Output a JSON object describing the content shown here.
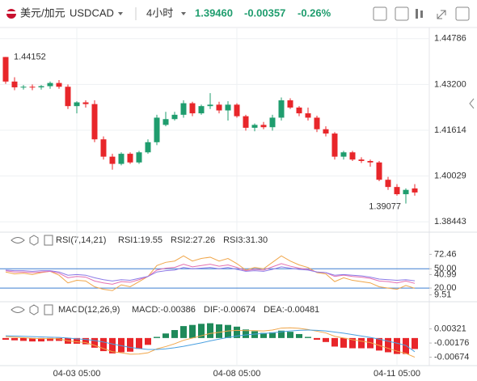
{
  "header": {
    "pair": "美元/加元",
    "symbol": "USDCAD",
    "interval": "4小时",
    "price": "1.39460",
    "change": "-0.00357",
    "change_pct": "-0.26%"
  },
  "chart_data": [
    {
      "type": "candlestick",
      "categories": [
        null,
        null,
        null,
        null,
        null,
        null,
        null,
        null,
        "04-03 05:00",
        null,
        null,
        null,
        null,
        null,
        null,
        null,
        null,
        null,
        null,
        null,
        null,
        null,
        null,
        null,
        null,
        null,
        "04-08 05:00",
        null,
        null,
        null,
        null,
        null,
        null,
        null,
        null,
        null,
        null,
        null,
        null,
        null,
        null,
        null,
        null,
        null,
        "04-11 05:00",
        null,
        null
      ],
      "open": [
        1.4415,
        1.433,
        1.431,
        1.4312,
        1.431,
        1.4314,
        1.4325,
        1.4312,
        1.4245,
        1.4258,
        1.4252,
        1.413,
        1.407,
        1.4045,
        1.408,
        1.405,
        1.4085,
        1.412,
        1.418,
        1.42,
        1.4215,
        1.4255,
        1.422,
        1.4245,
        1.425,
        1.423,
        1.425,
        1.421,
        1.417,
        1.418,
        1.4172,
        1.4205,
        1.4265,
        1.424,
        1.422,
        1.4205,
        1.4165,
        1.415,
        1.407,
        1.4085,
        1.406,
        1.4055,
        1.405,
        1.399,
        1.3965,
        1.394,
        1.396
      ],
      "high": [
        1.44152,
        1.4345,
        1.4318,
        1.432,
        1.4318,
        1.433,
        1.4335,
        1.432,
        1.4262,
        1.4265,
        1.4265,
        1.414,
        1.408,
        1.4085,
        1.4085,
        1.409,
        1.413,
        1.4215,
        1.4225,
        1.4225,
        1.4265,
        1.426,
        1.425,
        1.429,
        1.426,
        1.4262,
        1.4255,
        1.4215,
        1.4185,
        1.419,
        1.4215,
        1.4275,
        1.4272,
        1.4245,
        1.424,
        1.4212,
        1.4175,
        1.4155,
        1.409,
        1.409,
        1.4068,
        1.406,
        1.4055,
        1.4,
        1.3975,
        1.396,
        1.3975
      ],
      "low": [
        1.4322,
        1.43,
        1.4302,
        1.43,
        1.4302,
        1.4305,
        1.4305,
        1.4235,
        1.422,
        1.424,
        1.412,
        1.406,
        1.4025,
        1.404,
        1.4045,
        1.4045,
        1.408,
        1.411,
        1.4175,
        1.4195,
        1.4205,
        1.421,
        1.4215,
        1.4235,
        1.422,
        1.4195,
        1.4205,
        1.416,
        1.4158,
        1.4165,
        1.416,
        1.4195,
        1.4235,
        1.421,
        1.4195,
        1.4155,
        1.414,
        1.406,
        1.406,
        1.4055,
        1.4048,
        1.4035,
        1.3985,
        1.3955,
        1.3935,
        1.39077,
        1.3935
      ],
      "close": [
        1.433,
        1.431,
        1.4312,
        1.431,
        1.4314,
        1.4325,
        1.4312,
        1.4245,
        1.4258,
        1.4252,
        1.413,
        1.407,
        1.4045,
        1.408,
        1.405,
        1.4085,
        1.412,
        1.4205,
        1.42,
        1.4215,
        1.4255,
        1.422,
        1.4245,
        1.425,
        1.423,
        1.425,
        1.421,
        1.417,
        1.418,
        1.4172,
        1.4205,
        1.4265,
        1.424,
        1.422,
        1.4205,
        1.4165,
        1.415,
        1.407,
        1.4085,
        1.406,
        1.4055,
        1.405,
        1.399,
        1.3965,
        1.394,
        1.3955,
        1.3946
      ],
      "up_color": "#1f9d6e",
      "down_color": "#e8262a",
      "ylim": [
        1.38226,
        1.45003
      ],
      "yticks": [
        1.44786,
        {
          "value": 1.432,
          "label": "1.43200"
        },
        1.41614,
        1.40029,
        1.38443
      ],
      "annotations": [
        "1.44152",
        "1.39077"
      ],
      "grid": true
    },
    {
      "type": "line",
      "title": "RSI(7,14,21)",
      "series": [
        {
          "name": "RSI1:19.55",
          "color": "#f0a64a",
          "values": [
            45,
            42,
            43,
            41,
            44,
            46,
            40,
            28,
            32,
            31,
            22,
            18,
            16,
            25,
            22,
            30,
            38,
            55,
            60,
            62,
            70,
            62,
            66,
            68,
            62,
            66,
            58,
            48,
            52,
            50,
            60,
            70,
            62,
            56,
            52,
            44,
            42,
            30,
            36,
            32,
            30,
            28,
            22,
            20,
            18,
            24,
            19.55
          ]
        },
        {
          "name": "RSI2:27.26",
          "color": "#e46fb0",
          "values": [
            47,
            45,
            45,
            44,
            45,
            46,
            43,
            36,
            38,
            37,
            31,
            28,
            26,
            30,
            29,
            33,
            38,
            48,
            51,
            52,
            57,
            53,
            55,
            57,
            54,
            56,
            52,
            47,
            49,
            48,
            53,
            58,
            54,
            51,
            49,
            45,
            44,
            38,
            40,
            38,
            37,
            35,
            31,
            30,
            28,
            31,
            27.26
          ]
        },
        {
          "name": "RSI3:31.30",
          "color": "#8c7ae6",
          "values": [
            48,
            47,
            47,
            46,
            47,
            47,
            45,
            40,
            41,
            40,
            36,
            33,
            31,
            33,
            32,
            35,
            38,
            45,
            47,
            48,
            52,
            50,
            51,
            52,
            50,
            52,
            49,
            46,
            47,
            46,
            49,
            53,
            51,
            49,
            48,
            45,
            44,
            40,
            41,
            40,
            39,
            37,
            34,
            33,
            32,
            33,
            31.3
          ]
        }
      ],
      "ylim": [
        5,
        78
      ],
      "yticks": [
        72.46,
        {
          "value": 50,
          "label": "50.00"
        },
        40.99,
        {
          "value": 20,
          "label": "20.00"
        },
        9.51
      ],
      "levels": [
        50,
        20
      ],
      "level_color": "#3f7fd0"
    },
    {
      "type": "bar",
      "title": "MACD(12,26,9)",
      "name": "MACD:-0.00386",
      "name_color": "#9a7fd6",
      "values": [
        -0.0006,
        -0.0008,
        -0.001,
        -0.0012,
        -0.0012,
        -0.001,
        -0.001,
        -0.002,
        -0.002,
        -0.0022,
        -0.0034,
        -0.0046,
        -0.0054,
        -0.005,
        -0.0048,
        -0.0038,
        -0.0024,
        0.0004,
        0.0016,
        0.0028,
        0.0042,
        0.0046,
        0.005,
        0.0052,
        0.0048,
        0.0046,
        0.004,
        0.003,
        0.0024,
        0.0018,
        0.002,
        0.0026,
        0.0022,
        0.0014,
        0.0004,
        -0.0006,
        -0.0014,
        -0.003,
        -0.0034,
        -0.0036,
        -0.0036,
        -0.0036,
        -0.0044,
        -0.005,
        -0.0056,
        -0.0056,
        -0.00386
      ],
      "up_color": "#1f8a5a",
      "down_color": "#e8262a",
      "lines": [
        {
          "name": "DIF:-0.00674",
          "color": "#f0a64a",
          "values": [
            0.0005,
            0.0003,
            0.0001,
            -0.0001,
            -0.0002,
            -0.0002,
            -0.0003,
            -0.001,
            -0.0013,
            -0.0016,
            -0.0026,
            -0.0037,
            -0.0048,
            -0.0052,
            -0.0057,
            -0.0056,
            -0.0052,
            -0.0038,
            -0.003,
            -0.002,
            -0.0008,
            0,
            0.0008,
            0.0016,
            0.002,
            0.0025,
            0.0027,
            0.0026,
            0.0026,
            0.0025,
            0.0028,
            0.0035,
            0.0036,
            0.0034,
            0.003,
            0.0024,
            0.0018,
            0.0006,
            0,
            -0.0006,
            -0.0011,
            -0.0016,
            -0.0026,
            -0.0036,
            -0.0046,
            -0.0054,
            -0.00674
          ]
        },
        {
          "name": "DEA:-0.00481",
          "color": "#4aa0e0",
          "values": [
            0.0008,
            0.0007,
            0.0006,
            0.0005,
            0.0004,
            0.0003,
            0.0002,
            0,
            -0.0003,
            -0.0005,
            -0.0009,
            -0.0014,
            -0.0021,
            -0.0027,
            -0.0033,
            -0.0037,
            -0.004,
            -0.004,
            -0.0038,
            -0.0034,
            -0.0029,
            -0.0023,
            -0.0017,
            -0.001,
            -0.0004,
            0.0002,
            0.0007,
            0.0011,
            0.0014,
            0.0016,
            0.0018,
            0.0022,
            0.0025,
            0.0027,
            0.0028,
            0.0027,
            0.0025,
            0.0021,
            0.0017,
            0.0012,
            0.0007,
            0.0002,
            -0.0004,
            -0.0011,
            -0.0018,
            -0.0026,
            -0.00481
          ]
        }
      ],
      "ylim": [
        -0.0097,
        0.0102
      ],
      "yticks": [
        0.00321,
        -0.00176,
        -0.00674
      ]
    }
  ]
}
